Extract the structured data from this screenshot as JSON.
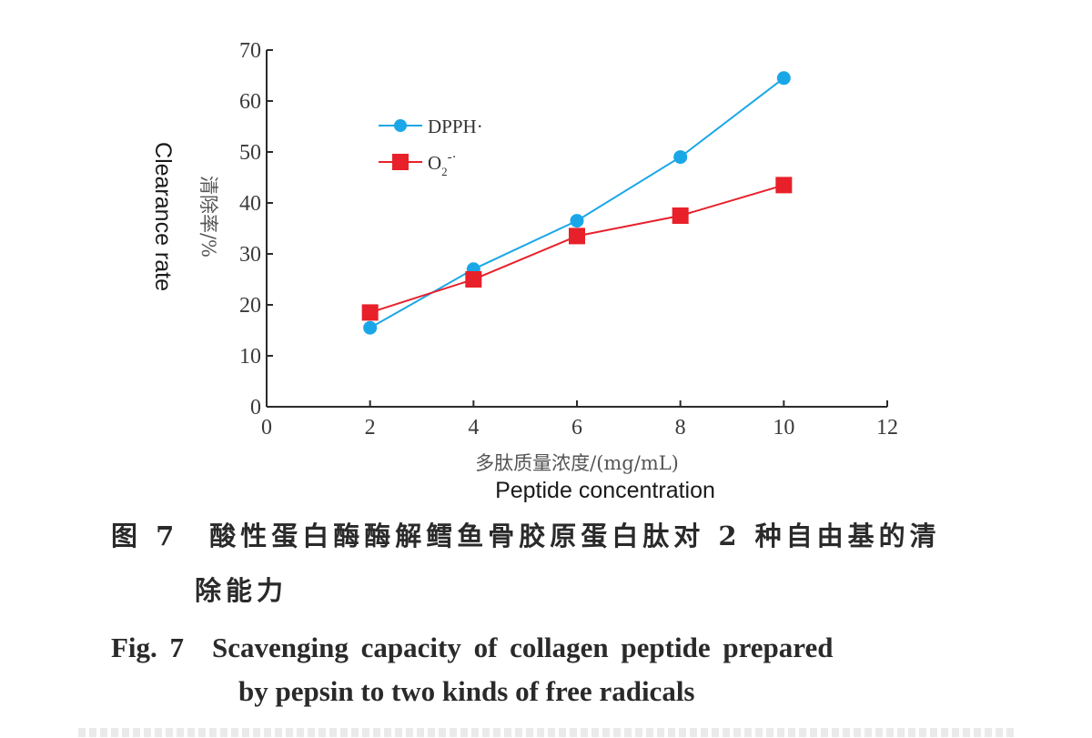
{
  "chart_data": {
    "type": "line",
    "x": [
      2,
      4,
      6,
      8,
      10
    ],
    "series": [
      {
        "name": "DPPH·",
        "values": [
          15.5,
          27,
          36.5,
          49,
          64.5
        ],
        "color": "#1aa7e8",
        "marker": "circle"
      },
      {
        "name": "O2-·",
        "values": [
          18.5,
          25,
          33.5,
          37.5,
          43.5
        ],
        "color": "#e8202a",
        "marker": "square"
      }
    ],
    "xlim": [
      0,
      12
    ],
    "ylim": [
      0,
      70
    ],
    "xticks": [
      "0",
      "2",
      "4",
      "6",
      "8",
      "10",
      "12"
    ],
    "yticks": [
      "0",
      "10",
      "20",
      "30",
      "40",
      "50",
      "60",
      "70"
    ],
    "xlabel_cn": "多肽质量浓度/(mg/mL)",
    "xlabel_en": "Peptide concentration",
    "ylabel_cn": "清除率/%",
    "ylabel_en": "Clearance rate",
    "legend_position": "upper-left",
    "grid": false
  },
  "legend": {
    "dpph": "DPPH·",
    "o2_main": "O",
    "o2_sub": "2",
    "o2_sup": "-·"
  },
  "caption": {
    "cn_line1": "图 7　酸性蛋白酶酶解鳕鱼骨胶原蛋白肽对 2 种自由基的清",
    "cn_line2": "除能力",
    "en_line1": "Fig. 7　Scavenging capacity of collagen peptide prepared",
    "en_line2": "by pepsin to two kinds of free radicals"
  }
}
